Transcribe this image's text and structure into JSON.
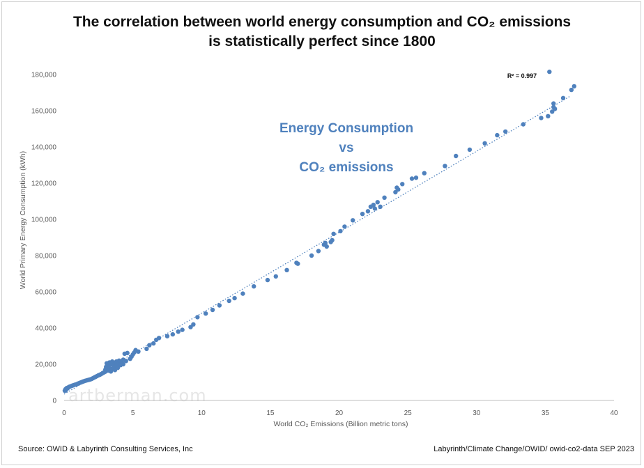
{
  "title_line1": "The correlation between world energy consumption and CO₂ emissions",
  "title_line2": "is statistically perfect since 1800",
  "watermark": "artberman.com",
  "source_left": "Source: OWID & Labyrinth Consulting Services, Inc",
  "source_right": "Labyrinth/Climate Change/OWID/ owid-co2-data SEP 2023",
  "chart_data": {
    "type": "scatter",
    "xlabel": "World CO₂ Emissions (Billion metric tons)",
    "ylabel": "World Primary Energy Consumption (kWh)",
    "xlim": [
      0,
      40
    ],
    "ylim": [
      0,
      180000
    ],
    "xticks": [
      0,
      5,
      10,
      15,
      20,
      25,
      30,
      35,
      40
    ],
    "xtick_labels": [
      "0",
      "5",
      "10",
      "15",
      "20",
      "25",
      "30",
      "35",
      "40"
    ],
    "yticks": [
      0,
      20000,
      40000,
      60000,
      80000,
      100000,
      120000,
      140000,
      160000,
      180000
    ],
    "ytick_labels": [
      "0",
      "20,000",
      "40,000",
      "60,000",
      "80,000",
      "100,000",
      "120,000",
      "140,000",
      "160,000",
      "180,000"
    ],
    "grid": false,
    "marker_color": "#4f81bd",
    "trendline": {
      "type": "linear",
      "x": [
        0,
        36.8
      ],
      "y": [
        3500,
        168000
      ],
      "label": "R² = 0.997"
    },
    "annotation_lines": [
      "Energy Consumption",
      "vs",
      "CO₂ emissions"
    ],
    "points": [
      [
        0.05,
        5400
      ],
      [
        0.08,
        5800
      ],
      [
        0.1,
        6200
      ],
      [
        0.12,
        5600
      ],
      [
        0.15,
        6500
      ],
      [
        0.2,
        6900
      ],
      [
        0.25,
        6700
      ],
      [
        0.3,
        7200
      ],
      [
        0.35,
        7400
      ],
      [
        0.4,
        7600
      ],
      [
        0.5,
        7900
      ],
      [
        0.6,
        8200
      ],
      [
        0.7,
        8500
      ],
      [
        0.8,
        8700
      ],
      [
        0.9,
        8900
      ],
      [
        1.0,
        9300
      ],
      [
        1.1,
        9600
      ],
      [
        1.2,
        9900
      ],
      [
        1.3,
        10200
      ],
      [
        1.4,
        10500
      ],
      [
        1.5,
        10800
      ],
      [
        1.6,
        11000
      ],
      [
        1.7,
        11200
      ],
      [
        1.8,
        11400
      ],
      [
        1.9,
        11600
      ],
      [
        2.0,
        11900
      ],
      [
        2.1,
        12300
      ],
      [
        2.2,
        12700
      ],
      [
        2.3,
        13100
      ],
      [
        2.4,
        13500
      ],
      [
        2.5,
        13900
      ],
      [
        2.6,
        14200
      ],
      [
        2.7,
        14600
      ],
      [
        2.8,
        15100
      ],
      [
        2.9,
        15500
      ],
      [
        3.0,
        15900
      ],
      [
        3.0,
        17000
      ],
      [
        3.05,
        18500
      ],
      [
        3.1,
        20500
      ],
      [
        3.2,
        16500
      ],
      [
        3.2,
        19500
      ],
      [
        3.3,
        17800
      ],
      [
        3.3,
        21000
      ],
      [
        3.4,
        16000
      ],
      [
        3.4,
        20000
      ],
      [
        3.5,
        17500
      ],
      [
        3.5,
        21500
      ],
      [
        3.6,
        18800
      ],
      [
        3.7,
        20200
      ],
      [
        3.7,
        16800
      ],
      [
        3.8,
        19000
      ],
      [
        3.8,
        21500
      ],
      [
        3.9,
        18000
      ],
      [
        4.0,
        20500
      ],
      [
        4.0,
        22000
      ],
      [
        4.1,
        19500
      ],
      [
        4.2,
        21000
      ],
      [
        4.3,
        22500
      ],
      [
        4.3,
        20000
      ],
      [
        4.4,
        25800
      ],
      [
        4.5,
        21800
      ],
      [
        4.6,
        26200
      ],
      [
        4.8,
        23000
      ],
      [
        4.9,
        24200
      ],
      [
        5.0,
        25400
      ],
      [
        5.1,
        26500
      ],
      [
        5.2,
        27800
      ],
      [
        5.4,
        27000
      ],
      [
        6.0,
        28500
      ],
      [
        6.2,
        30500
      ],
      [
        6.5,
        31500
      ],
      [
        6.7,
        33500
      ],
      [
        6.9,
        34500
      ],
      [
        7.5,
        35500
      ],
      [
        7.9,
        36500
      ],
      [
        8.3,
        38000
      ],
      [
        8.6,
        39000
      ],
      [
        9.2,
        40500
      ],
      [
        9.4,
        42000
      ],
      [
        9.7,
        46000
      ],
      [
        10.3,
        48000
      ],
      [
        10.8,
        50000
      ],
      [
        11.3,
        52500
      ],
      [
        12.0,
        55000
      ],
      [
        12.4,
        56500
      ],
      [
        13.0,
        59000
      ],
      [
        13.8,
        63000
      ],
      [
        14.8,
        66500
      ],
      [
        15.4,
        68500
      ],
      [
        16.2,
        72000
      ],
      [
        16.9,
        76000
      ],
      [
        17.0,
        75500
      ],
      [
        18.0,
        80000
      ],
      [
        18.5,
        82500
      ],
      [
        18.9,
        86000
      ],
      [
        19.0,
        87000
      ],
      [
        19.1,
        85000
      ],
      [
        19.4,
        87500
      ],
      [
        19.5,
        88500
      ],
      [
        19.6,
        92000
      ],
      [
        20.1,
        93500
      ],
      [
        20.4,
        96000
      ],
      [
        21.0,
        99500
      ],
      [
        21.7,
        103000
      ],
      [
        22.1,
        104500
      ],
      [
        22.3,
        107000
      ],
      [
        22.5,
        108000
      ],
      [
        22.6,
        106000
      ],
      [
        22.8,
        109500
      ],
      [
        23.0,
        107000
      ],
      [
        23.3,
        112000
      ],
      [
        24.1,
        115000
      ],
      [
        24.2,
        117500
      ],
      [
        24.3,
        116500
      ],
      [
        24.6,
        119500
      ],
      [
        25.3,
        122500
      ],
      [
        25.6,
        123000
      ],
      [
        26.2,
        125500
      ],
      [
        27.7,
        129500
      ],
      [
        28.5,
        135000
      ],
      [
        29.5,
        138500
      ],
      [
        30.6,
        142000
      ],
      [
        31.5,
        146500
      ],
      [
        32.1,
        148500
      ],
      [
        33.4,
        152500
      ],
      [
        34.7,
        156000
      ],
      [
        35.2,
        157000
      ],
      [
        35.3,
        181500
      ],
      [
        35.5,
        159500
      ],
      [
        35.6,
        162000
      ],
      [
        35.6,
        164000
      ],
      [
        35.7,
        161000
      ],
      [
        36.3,
        167000
      ],
      [
        36.9,
        171500
      ],
      [
        37.1,
        173500
      ]
    ]
  }
}
